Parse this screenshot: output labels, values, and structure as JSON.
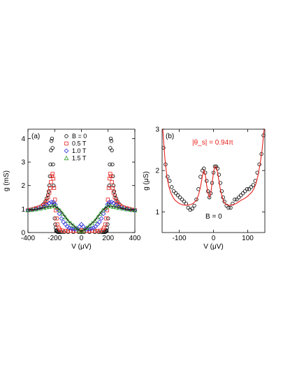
{
  "chart_data": [
    {
      "panel": "(a)",
      "type": "scatter",
      "xlabel": "V (μV)",
      "ylabel": "g (mS)",
      "xlim": [
        -400,
        400
      ],
      "ylim": [
        0,
        4.4
      ],
      "xticks": [
        -400,
        -200,
        0,
        200,
        400
      ],
      "yticks": [
        0,
        1,
        2,
        3,
        4
      ],
      "legend": {
        "title": "B = 0",
        "placement": "top-left",
        "labels": [
          "0.5 T",
          "1.0 T",
          "1.5 T"
        ]
      },
      "series": [
        {
          "name": "B = 0",
          "marker": "circle",
          "color": "#000000",
          "x": [
            -400,
            -380,
            -360,
            -340,
            -320,
            -300,
            -285,
            -270,
            -260,
            -250,
            -245,
            -240,
            -236,
            -232,
            -228,
            -224,
            -220,
            -216,
            -212,
            -208,
            -204,
            -200,
            -196,
            -192,
            -188,
            -184,
            -180,
            -172,
            -164,
            -150,
            -130,
            -100,
            -60,
            -20,
            0,
            20,
            60,
            100,
            130,
            150,
            164,
            172,
            180,
            184,
            188,
            192,
            196,
            200,
            204,
            208,
            212,
            216,
            220,
            224,
            228,
            232,
            236,
            240,
            245,
            250,
            260,
            270,
            285,
            300,
            320,
            340,
            360,
            380,
            400
          ],
          "y": [
            0.95,
            0.97,
            1.0,
            1.03,
            1.07,
            1.12,
            1.2,
            1.32,
            1.45,
            1.6,
            1.75,
            2.0,
            2.4,
            2.9,
            3.5,
            3.9,
            4.0,
            3.6,
            2.9,
            2.0,
            1.2,
            0.6,
            0.35,
            0.2,
            0.1,
            0.05,
            0.03,
            0.02,
            0.02,
            0.02,
            0.02,
            0.02,
            0.02,
            0.02,
            0.02,
            0.02,
            0.02,
            0.02,
            0.02,
            0.02,
            0.02,
            0.02,
            0.03,
            0.05,
            0.1,
            0.2,
            0.35,
            0.6,
            1.2,
            2.0,
            2.9,
            3.6,
            4.0,
            3.9,
            3.5,
            2.9,
            2.4,
            2.0,
            1.75,
            1.6,
            1.45,
            1.32,
            1.2,
            1.12,
            1.07,
            1.03,
            1.0,
            0.97,
            0.95
          ]
        },
        {
          "name": "0.5 T",
          "marker": "square",
          "color": "#e8221e",
          "x": [
            -400,
            -380,
            -360,
            -340,
            -320,
            -300,
            -285,
            -270,
            -260,
            -250,
            -240,
            -234,
            -228,
            -222,
            -216,
            -210,
            -204,
            -198,
            -192,
            -186,
            -180,
            -170,
            -160,
            -140,
            -120,
            -100,
            -80,
            -60,
            -40,
            -20,
            0,
            20,
            40,
            60,
            80,
            100,
            120,
            140,
            160,
            170,
            180,
            186,
            192,
            198,
            204,
            210,
            216,
            222,
            228,
            234,
            240,
            250,
            260,
            270,
            285,
            300,
            320,
            340,
            360,
            380,
            400
          ],
          "y": [
            0.95,
            0.97,
            1.0,
            1.03,
            1.06,
            1.1,
            1.16,
            1.25,
            1.35,
            1.5,
            1.7,
            1.9,
            2.15,
            2.4,
            2.5,
            2.3,
            1.9,
            1.4,
            0.95,
            0.6,
            0.35,
            0.2,
            0.12,
            0.08,
            0.07,
            0.07,
            0.07,
            0.07,
            0.07,
            0.08,
            0.1,
            0.08,
            0.07,
            0.07,
            0.07,
            0.07,
            0.07,
            0.08,
            0.12,
            0.2,
            0.35,
            0.6,
            0.95,
            1.4,
            1.9,
            2.3,
            2.5,
            2.4,
            2.15,
            1.9,
            1.7,
            1.5,
            1.35,
            1.25,
            1.16,
            1.1,
            1.06,
            1.03,
            1.0,
            0.97,
            0.95
          ]
        },
        {
          "name": "1.0 T",
          "marker": "diamond",
          "color": "#2a2ad8",
          "x": [
            -400,
            -370,
            -340,
            -310,
            -280,
            -260,
            -240,
            -225,
            -210,
            -195,
            -180,
            -165,
            -150,
            -135,
            -120,
            -105,
            -90,
            -75,
            -60,
            -45,
            -30,
            -15,
            0,
            15,
            30,
            45,
            60,
            75,
            90,
            105,
            120,
            135,
            150,
            165,
            180,
            195,
            210,
            225,
            240,
            260,
            280,
            310,
            340,
            370,
            400
          ],
          "y": [
            0.95,
            0.97,
            1.0,
            1.04,
            1.1,
            1.17,
            1.25,
            1.3,
            1.3,
            1.2,
            1.0,
            0.8,
            0.6,
            0.45,
            0.35,
            0.25,
            0.2,
            0.17,
            0.15,
            0.14,
            0.15,
            0.25,
            0.35,
            0.25,
            0.15,
            0.14,
            0.15,
            0.17,
            0.2,
            0.25,
            0.35,
            0.45,
            0.6,
            0.8,
            1.0,
            1.2,
            1.3,
            1.3,
            1.25,
            1.17,
            1.1,
            1.04,
            1.0,
            0.97,
            0.95
          ]
        },
        {
          "name": "1.5 T",
          "marker": "triangle",
          "color": "#2aa02a",
          "x": [
            -400,
            -370,
            -340,
            -310,
            -280,
            -260,
            -240,
            -220,
            -200,
            -180,
            -160,
            -140,
            -120,
            -100,
            -80,
            -60,
            -40,
            -20,
            0,
            20,
            40,
            60,
            80,
            100,
            120,
            140,
            160,
            180,
            200,
            220,
            240,
            260,
            280,
            310,
            340,
            370,
            400
          ],
          "y": [
            0.95,
            0.97,
            0.99,
            1.02,
            1.05,
            1.08,
            1.1,
            1.12,
            1.12,
            1.05,
            0.95,
            0.8,
            0.65,
            0.5,
            0.4,
            0.3,
            0.2,
            0.1,
            0.05,
            0.1,
            0.2,
            0.3,
            0.4,
            0.5,
            0.65,
            0.8,
            0.95,
            1.05,
            1.12,
            1.12,
            1.1,
            1.08,
            1.05,
            1.02,
            0.99,
            0.97,
            0.95
          ]
        }
      ]
    },
    {
      "panel": "(b)",
      "type": "scatter",
      "xlabel": "V (μV)",
      "ylabel": "g (μS)",
      "xlim": [
        -150,
        150
      ],
      "ylim": [
        0.5,
        3
      ],
      "xticks": [
        -100,
        0,
        100
      ],
      "yticks": [
        1,
        2,
        3
      ],
      "annotations": [
        "|θ_s| = 0.94π",
        "B = 0"
      ],
      "series": [
        {
          "name": "data",
          "marker": "circle",
          "color": "#000000",
          "x": [
            -146,
            -140,
            -134,
            -128,
            -122,
            -116,
            -110,
            -104,
            -98,
            -92,
            -86,
            -80,
            -74,
            -68,
            -62,
            -56,
            -50,
            -44,
            -38,
            -32,
            -28,
            -24,
            -20,
            -16,
            -12,
            -8,
            -4,
            0,
            4,
            8,
            12,
            16,
            20,
            24,
            28,
            32,
            38,
            44,
            50,
            56,
            62,
            68,
            74,
            80,
            86,
            92,
            98,
            104,
            110,
            116,
            122,
            128,
            134,
            140,
            146
          ],
          "y": [
            2.55,
            2.15,
            1.85,
            1.75,
            1.6,
            1.5,
            1.45,
            1.4,
            1.35,
            1.3,
            1.25,
            1.2,
            1.1,
            1.05,
            1.08,
            1.15,
            1.3,
            1.55,
            1.85,
            2.0,
            2.05,
            1.95,
            1.75,
            1.5,
            1.35,
            1.45,
            1.7,
            1.95,
            2.1,
            2.1,
            2.05,
            1.9,
            1.7,
            1.5,
            1.35,
            1.25,
            1.15,
            1.1,
            1.1,
            1.2,
            1.3,
            1.3,
            1.35,
            1.4,
            1.45,
            1.5,
            1.55,
            1.55,
            1.6,
            1.65,
            1.75,
            1.95,
            2.15,
            2.4,
            2.85
          ]
        },
        {
          "name": "fit",
          "type": "line",
          "color": "#e8221e",
          "x": [
            -148,
            -142,
            -136,
            -130,
            -124,
            -118,
            -112,
            -100,
            -90,
            -80,
            -70,
            -60,
            -50,
            -44,
            -38,
            -32,
            -28,
            -24,
            -20,
            -16,
            -12,
            -8,
            -4,
            0,
            4,
            8,
            12,
            16,
            20,
            24,
            28,
            32,
            38,
            44,
            50,
            60,
            70,
            80,
            90,
            100,
            112,
            118,
            124,
            130,
            136,
            142,
            148
          ],
          "y": [
            3.0,
            2.3,
            1.85,
            1.6,
            1.45,
            1.35,
            1.28,
            1.2,
            1.17,
            1.16,
            1.17,
            1.2,
            1.28,
            1.4,
            1.6,
            1.88,
            2.0,
            1.9,
            1.65,
            1.45,
            1.35,
            1.45,
            1.7,
            1.95,
            2.1,
            2.08,
            1.95,
            1.75,
            1.55,
            1.4,
            1.3,
            1.22,
            1.17,
            1.16,
            1.16,
            1.18,
            1.22,
            1.28,
            1.32,
            1.38,
            1.48,
            1.56,
            1.68,
            1.88,
            2.15,
            2.5,
            3.0
          ]
        }
      ]
    }
  ]
}
